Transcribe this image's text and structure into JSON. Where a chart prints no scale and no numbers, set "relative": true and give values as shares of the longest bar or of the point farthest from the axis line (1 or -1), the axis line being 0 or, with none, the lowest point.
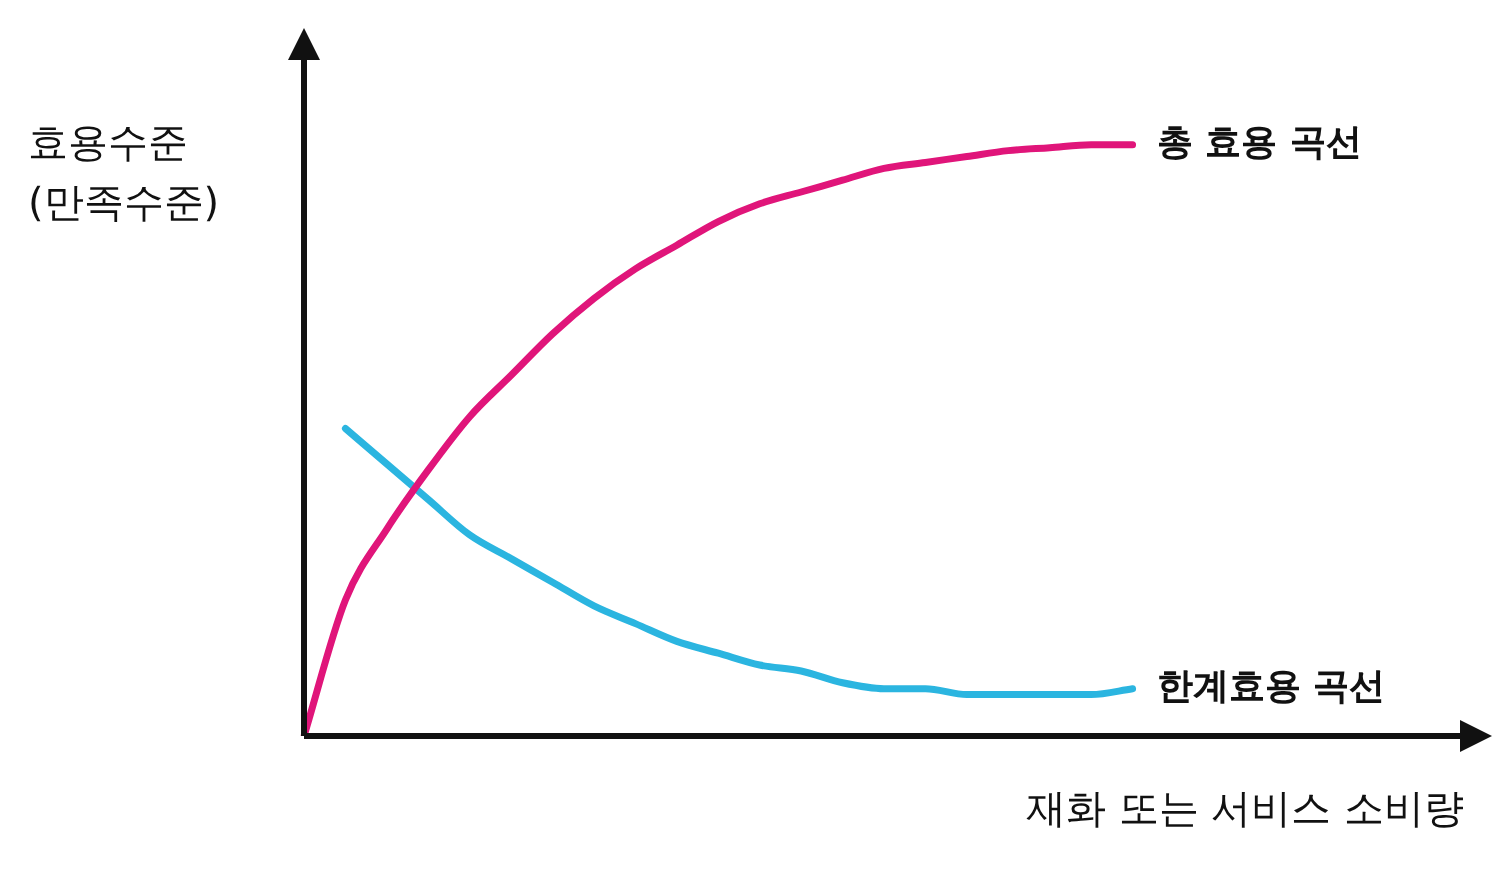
{
  "chart_data": {
    "type": "line",
    "relative": true,
    "ylabel": "효용수준\n(만족수준)",
    "xlabel": "재화 또는 서비스 소비량",
    "categories": [
      null,
      null,
      null,
      null,
      null,
      null,
      null,
      null,
      null,
      null,
      null,
      null,
      null,
      null,
      null,
      null,
      null,
      null,
      null,
      null,
      null,
      null,
      null,
      null,
      null,
      null,
      null,
      null,
      null
    ],
    "series": [
      {
        "name": "총 효용 곡선",
        "color": "#e0157a",
        "values": [
          0,
          0.23,
          0.35,
          0.45,
          0.54,
          0.61,
          0.68,
          0.74,
          0.79,
          0.83,
          0.87,
          0.9,
          0.92,
          0.94,
          0.96,
          0.97,
          0.98,
          0.99,
          0.995,
          1,
          1,
          null,
          null,
          null,
          null,
          null,
          null,
          null,
          null
        ]
      },
      {
        "name": "한계효용 곡선",
        "color": "#2bb5e0",
        "values": [
          null,
          0.52,
          0.46,
          0.4,
          0.34,
          0.3,
          0.26,
          0.22,
          0.19,
          0.16,
          0.14,
          0.12,
          0.11,
          0.09,
          0.08,
          0.08,
          0.07,
          0.07,
          0.07,
          0.07,
          0.08,
          null,
          null,
          null,
          null,
          null,
          null,
          null,
          null
        ]
      }
    ],
    "legend": false,
    "marker": "none",
    "line_style": "solid"
  }
}
